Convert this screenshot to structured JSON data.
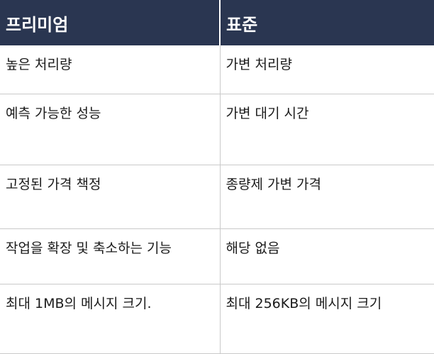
{
  "table": {
    "headers": [
      "프리미엄",
      "표준"
    ],
    "rows": [
      [
        "높은 처리량",
        "가변 처리량"
      ],
      [
        "예측 가능한 성능",
        "가변 대기 시간"
      ],
      [
        "고정된 가격 책정",
        "종량제 가변 가격"
      ],
      [
        "작업을 확장 및 축소하는 기능",
        "해당 없음"
      ],
      [
        "최대 1MB의 메시지 크기.",
        "최대 256KB의 메시지 크기"
      ]
    ]
  },
  "colors": {
    "header_background": "#2a3651",
    "header_text": "#ffffff",
    "divider": "#c9c9c9"
  }
}
